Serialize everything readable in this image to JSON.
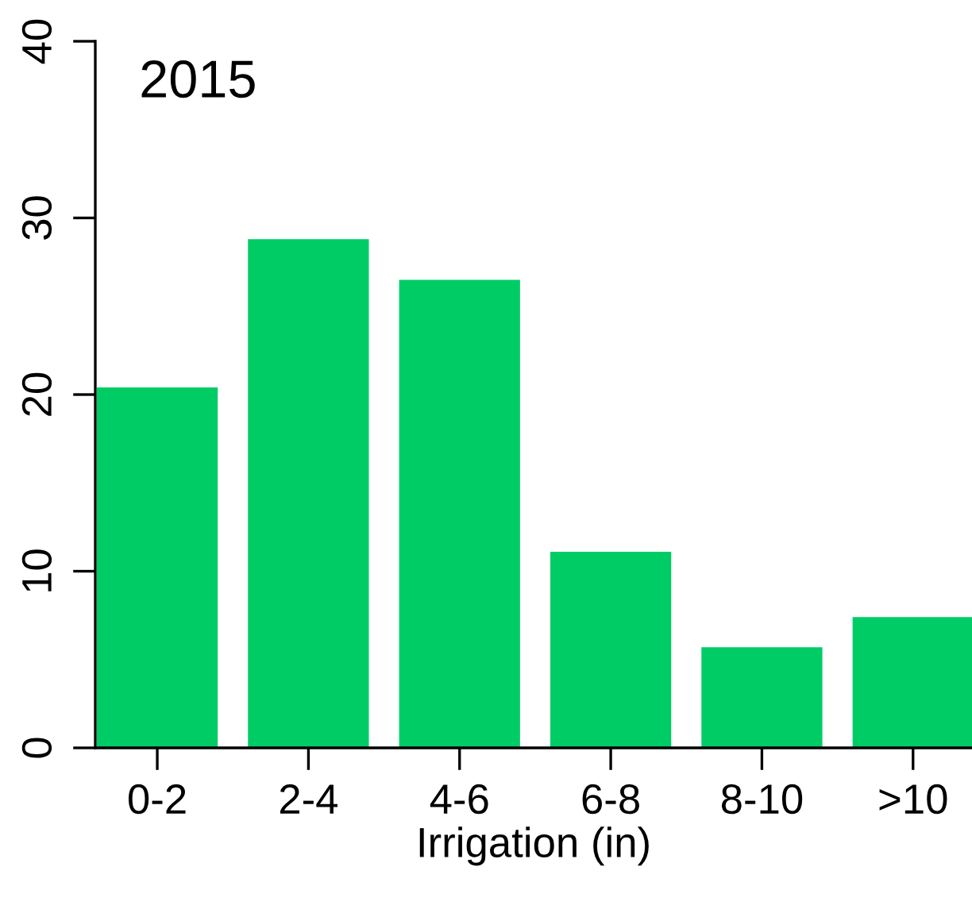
{
  "chart_data": {
    "type": "bar",
    "title": "2015",
    "xlabel": "Irrigation (in)",
    "categories": [
      "0-2",
      "2-4",
      "4-6",
      "6-8",
      "8-10",
      ">10"
    ],
    "values": [
      20.4,
      28.8,
      26.5,
      11.1,
      5.7,
      7.4
    ],
    "color": "#00cc66",
    "ylim": [
      0,
      40
    ],
    "yticks": [
      0,
      10,
      20,
      30,
      40
    ],
    "grid": false
  }
}
